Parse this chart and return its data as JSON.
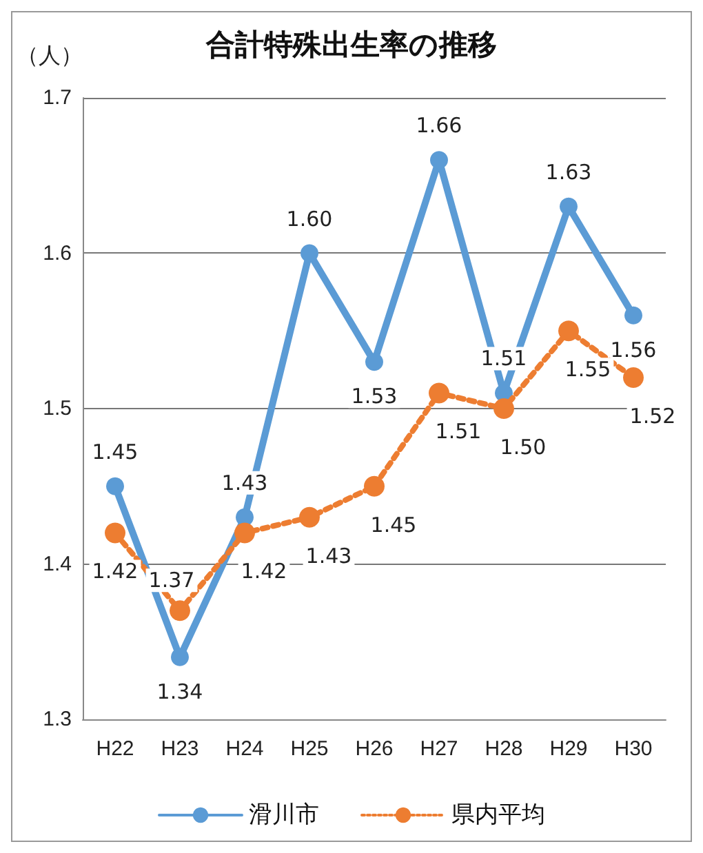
{
  "chart_data": {
    "type": "line",
    "title": "合計特殊出生率の推移",
    "ylabel": "（人）",
    "categories": [
      "H22",
      "H23",
      "H24",
      "H25",
      "H26",
      "H27",
      "H28",
      "H29",
      "H30"
    ],
    "series": [
      {
        "name": "滑川市",
        "color": "#5b9bd5",
        "line_style": "solid",
        "values": [
          1.45,
          1.34,
          1.43,
          1.6,
          1.53,
          1.66,
          1.51,
          1.63,
          1.56
        ],
        "value_labels": [
          "1.45",
          "1.34",
          "1.43",
          "1.60",
          "1.53",
          "1.66",
          "1.51",
          "1.63",
          "1.56"
        ]
      },
      {
        "name": "県内平均",
        "color": "#ed7d31",
        "line_style": "dotted",
        "values": [
          1.42,
          1.37,
          1.42,
          1.43,
          1.45,
          1.51,
          1.5,
          1.55,
          1.52
        ],
        "value_labels": [
          "1.42",
          "1.37",
          "1.42",
          "1.43",
          "1.45",
          "1.51",
          "1.50",
          "1.55",
          "1.52"
        ]
      }
    ],
    "ylim": [
      1.3,
      1.7
    ],
    "yticks": [
      1.3,
      1.4,
      1.5,
      1.6,
      1.7
    ],
    "grid": "y",
    "legend": "bottom",
    "marker": "circle"
  }
}
